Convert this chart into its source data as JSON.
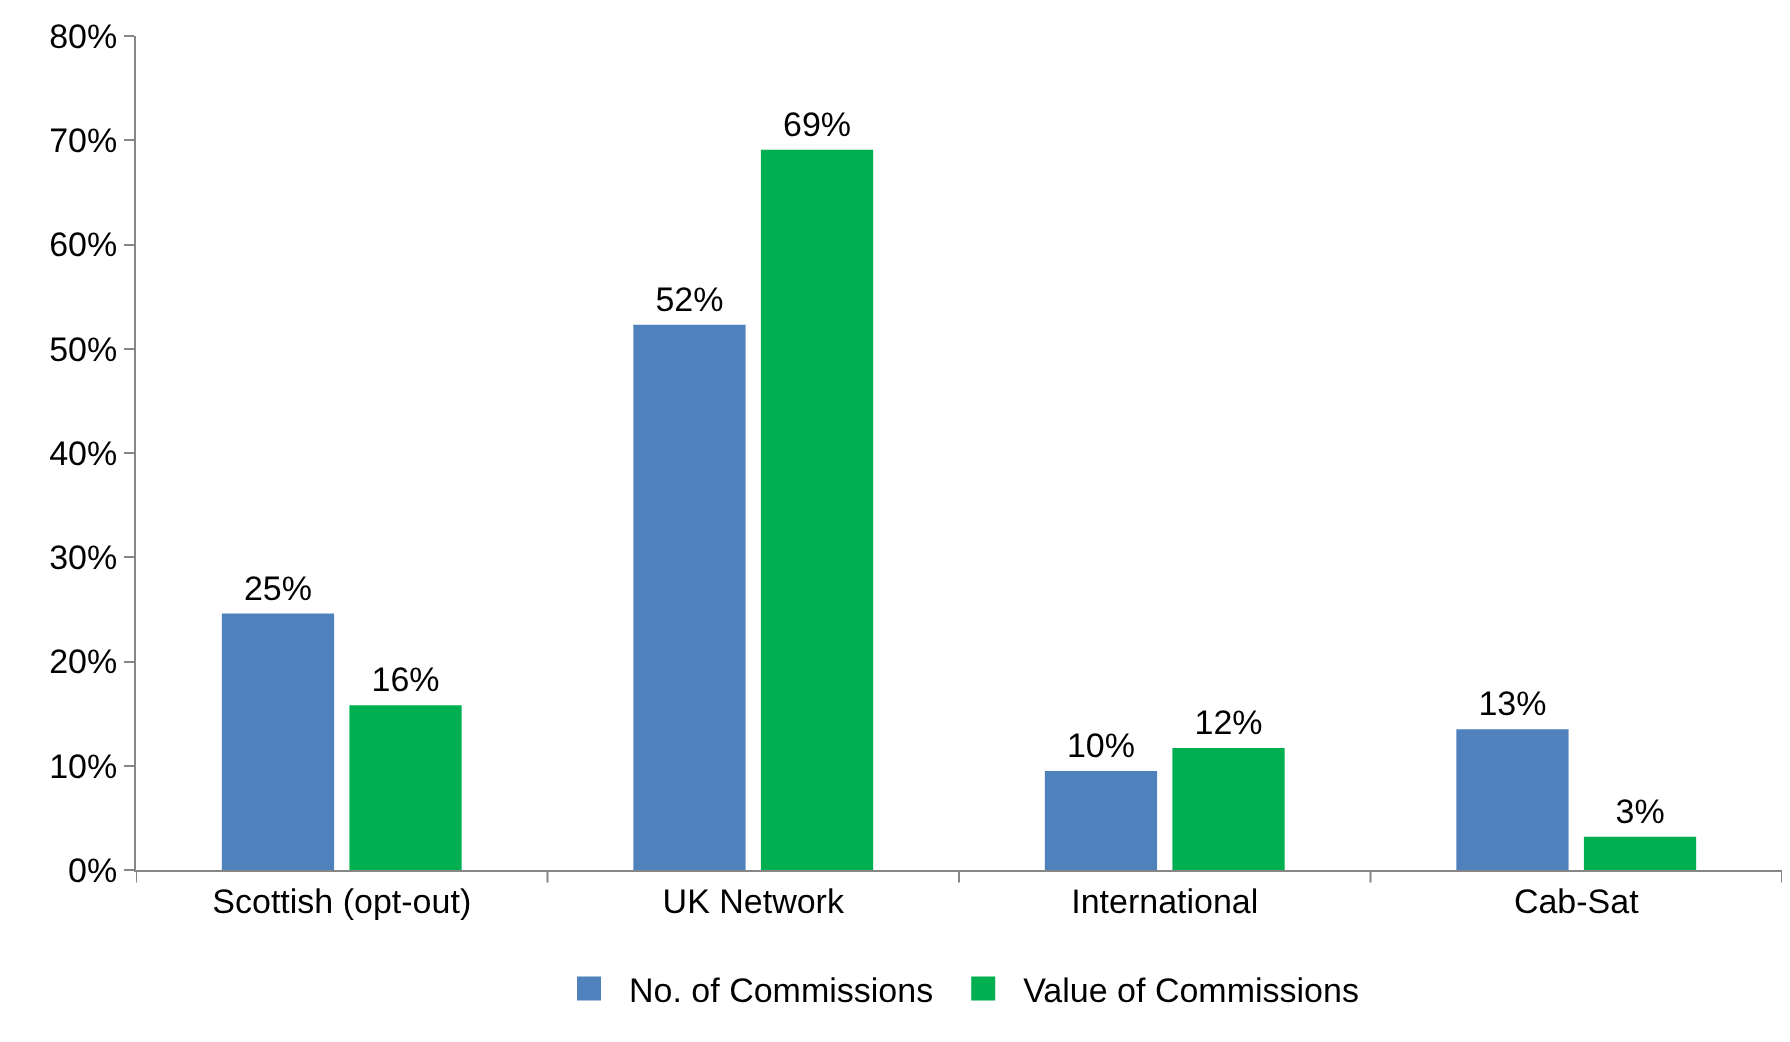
{
  "chart_data": {
    "type": "bar",
    "categories": [
      "Scottish (opt-out)",
      "UK Network",
      "International",
      "Cab-Sat"
    ],
    "series": [
      {
        "name": "No. of Commissions",
        "color": "#4f81bd",
        "values": [
          24.6,
          52.3,
          9.5,
          13.5
        ],
        "value_labels": [
          "25%",
          "52%",
          "10%",
          "13%"
        ]
      },
      {
        "name": "Value of Commissions",
        "color": "#00b050",
        "values": [
          15.8,
          69.1,
          11.7,
          3.2
        ],
        "value_labels": [
          "16%",
          "69%",
          "12%",
          "3%"
        ]
      }
    ],
    "ylim": [
      0,
      80
    ],
    "yticks": [
      {
        "value": 0,
        "label": "0%"
      },
      {
        "value": 10,
        "label": "10%"
      },
      {
        "value": 20,
        "label": "20%"
      },
      {
        "value": 30,
        "label": "30%"
      },
      {
        "value": 40,
        "label": "40%"
      },
      {
        "value": 50,
        "label": "50%"
      },
      {
        "value": 60,
        "label": "60%"
      },
      {
        "value": 70,
        "label": "70%"
      },
      {
        "value": 80,
        "label": "80%"
      }
    ],
    "legend": "bottom"
  }
}
